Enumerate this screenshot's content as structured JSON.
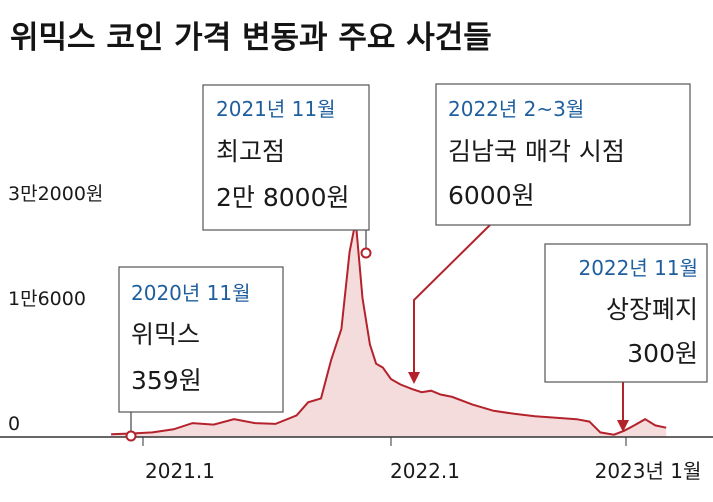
{
  "chart_data": {
    "type": "area",
    "title": "위믹스 코인 가격 변동과 주요 사건들",
    "xlabel": "",
    "ylabel": "",
    "x_ticks": [
      "2021.1",
      "2022.1",
      "2023년 1월"
    ],
    "y_ticks": [
      "3만2000원",
      "1만6000",
      "0"
    ],
    "ylim": [
      0,
      32000
    ],
    "grid": false,
    "colors": {
      "line": "#b4232c",
      "fill": "#f4dcdc",
      "baseline": "#333333",
      "date_text": "#1f5f9e"
    },
    "series": [
      {
        "x": [
          "2020-11-15",
          "2020-12-15",
          "2021-01-15",
          "2021-02-15",
          "2021-03-15",
          "2021-04-15",
          "2021-05-15",
          "2021-06-15",
          "2021-07-15",
          "2021-08-15",
          "2021-09-01",
          "2021-09-20",
          "2021-10-05",
          "2021-10-20",
          "2021-11-01",
          "2021-11-10",
          "2021-11-20",
          "2021-12-01",
          "2021-12-10",
          "2021-12-20",
          "2022-01-01",
          "2022-01-15",
          "2022-02-01",
          "2022-02-15",
          "2022-03-01",
          "2022-03-15",
          "2022-04-01",
          "2022-05-01",
          "2022-06-01",
          "2022-07-01",
          "2022-08-01",
          "2022-09-01",
          "2022-10-01",
          "2022-10-20",
          "2022-11-05",
          "2022-11-25",
          "2022-12-10",
          "2022-12-25",
          "2023-01-10",
          "2023-01-25",
          "2023-02-10"
        ],
        "values": [
          359,
          450,
          600,
          1000,
          1800,
          1600,
          2300,
          1800,
          1700,
          2800,
          4500,
          5000,
          10000,
          14000,
          24000,
          28000,
          18000,
          12000,
          9500,
          9000,
          7500,
          6800,
          6200,
          5800,
          6000,
          5500,
          5200,
          4200,
          3400,
          3000,
          2700,
          2500,
          2300,
          2000,
          600,
          300,
          800,
          1500,
          2300,
          1500,
          1200
        ]
      }
    ],
    "annotations": [
      {
        "date": "2020년 11월",
        "lines": [
          "위믹스",
          "359원"
        ]
      },
      {
        "date": "2021년 11월",
        "lines": [
          "최고점",
          "2만 8000원"
        ]
      },
      {
        "date": "2022년 2~3월",
        "lines": [
          "김남국 매각 시점",
          "6000원"
        ]
      },
      {
        "date": "2022년 11월",
        "lines": [
          "상장폐지",
          "300원"
        ]
      }
    ]
  }
}
